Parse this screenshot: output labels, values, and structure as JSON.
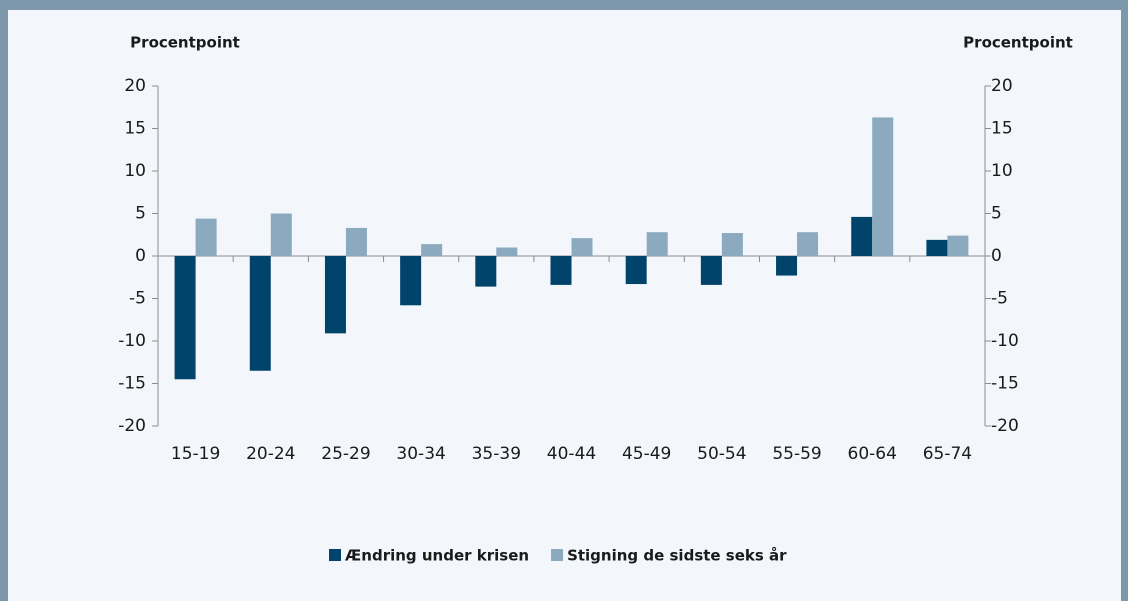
{
  "chart_data": {
    "type": "bar",
    "ylabel": "Procentpoint",
    "y2label": "Procentpoint",
    "categories": [
      "15-19",
      "20-24",
      "25-29",
      "30-34",
      "35-39",
      "40-44",
      "45-49",
      "50-54",
      "55-59",
      "60-64",
      "65-74"
    ],
    "series": [
      {
        "name": "Ændring under krisen",
        "color": "#00446c",
        "values": [
          -14.5,
          -13.5,
          -9.1,
          -5.8,
          -3.6,
          -3.4,
          -3.3,
          -3.4,
          -2.3,
          4.6,
          1.9
        ]
      },
      {
        "name": "Stigning de sidste seks år",
        "color": "#8ba9bf",
        "values": [
          4.4,
          5.0,
          3.3,
          1.4,
          1.0,
          2.1,
          2.8,
          2.7,
          2.8,
          16.3,
          2.4
        ]
      }
    ],
    "ylim": [
      -20,
      20
    ],
    "yticks": [
      -20,
      -15,
      -10,
      -5,
      0,
      5,
      10,
      15,
      20
    ],
    "y2lim": [
      -20,
      20
    ],
    "y2ticks": [
      -20,
      -15,
      -10,
      -5,
      0,
      5,
      10,
      15,
      20
    ],
    "legend": "bottom"
  }
}
